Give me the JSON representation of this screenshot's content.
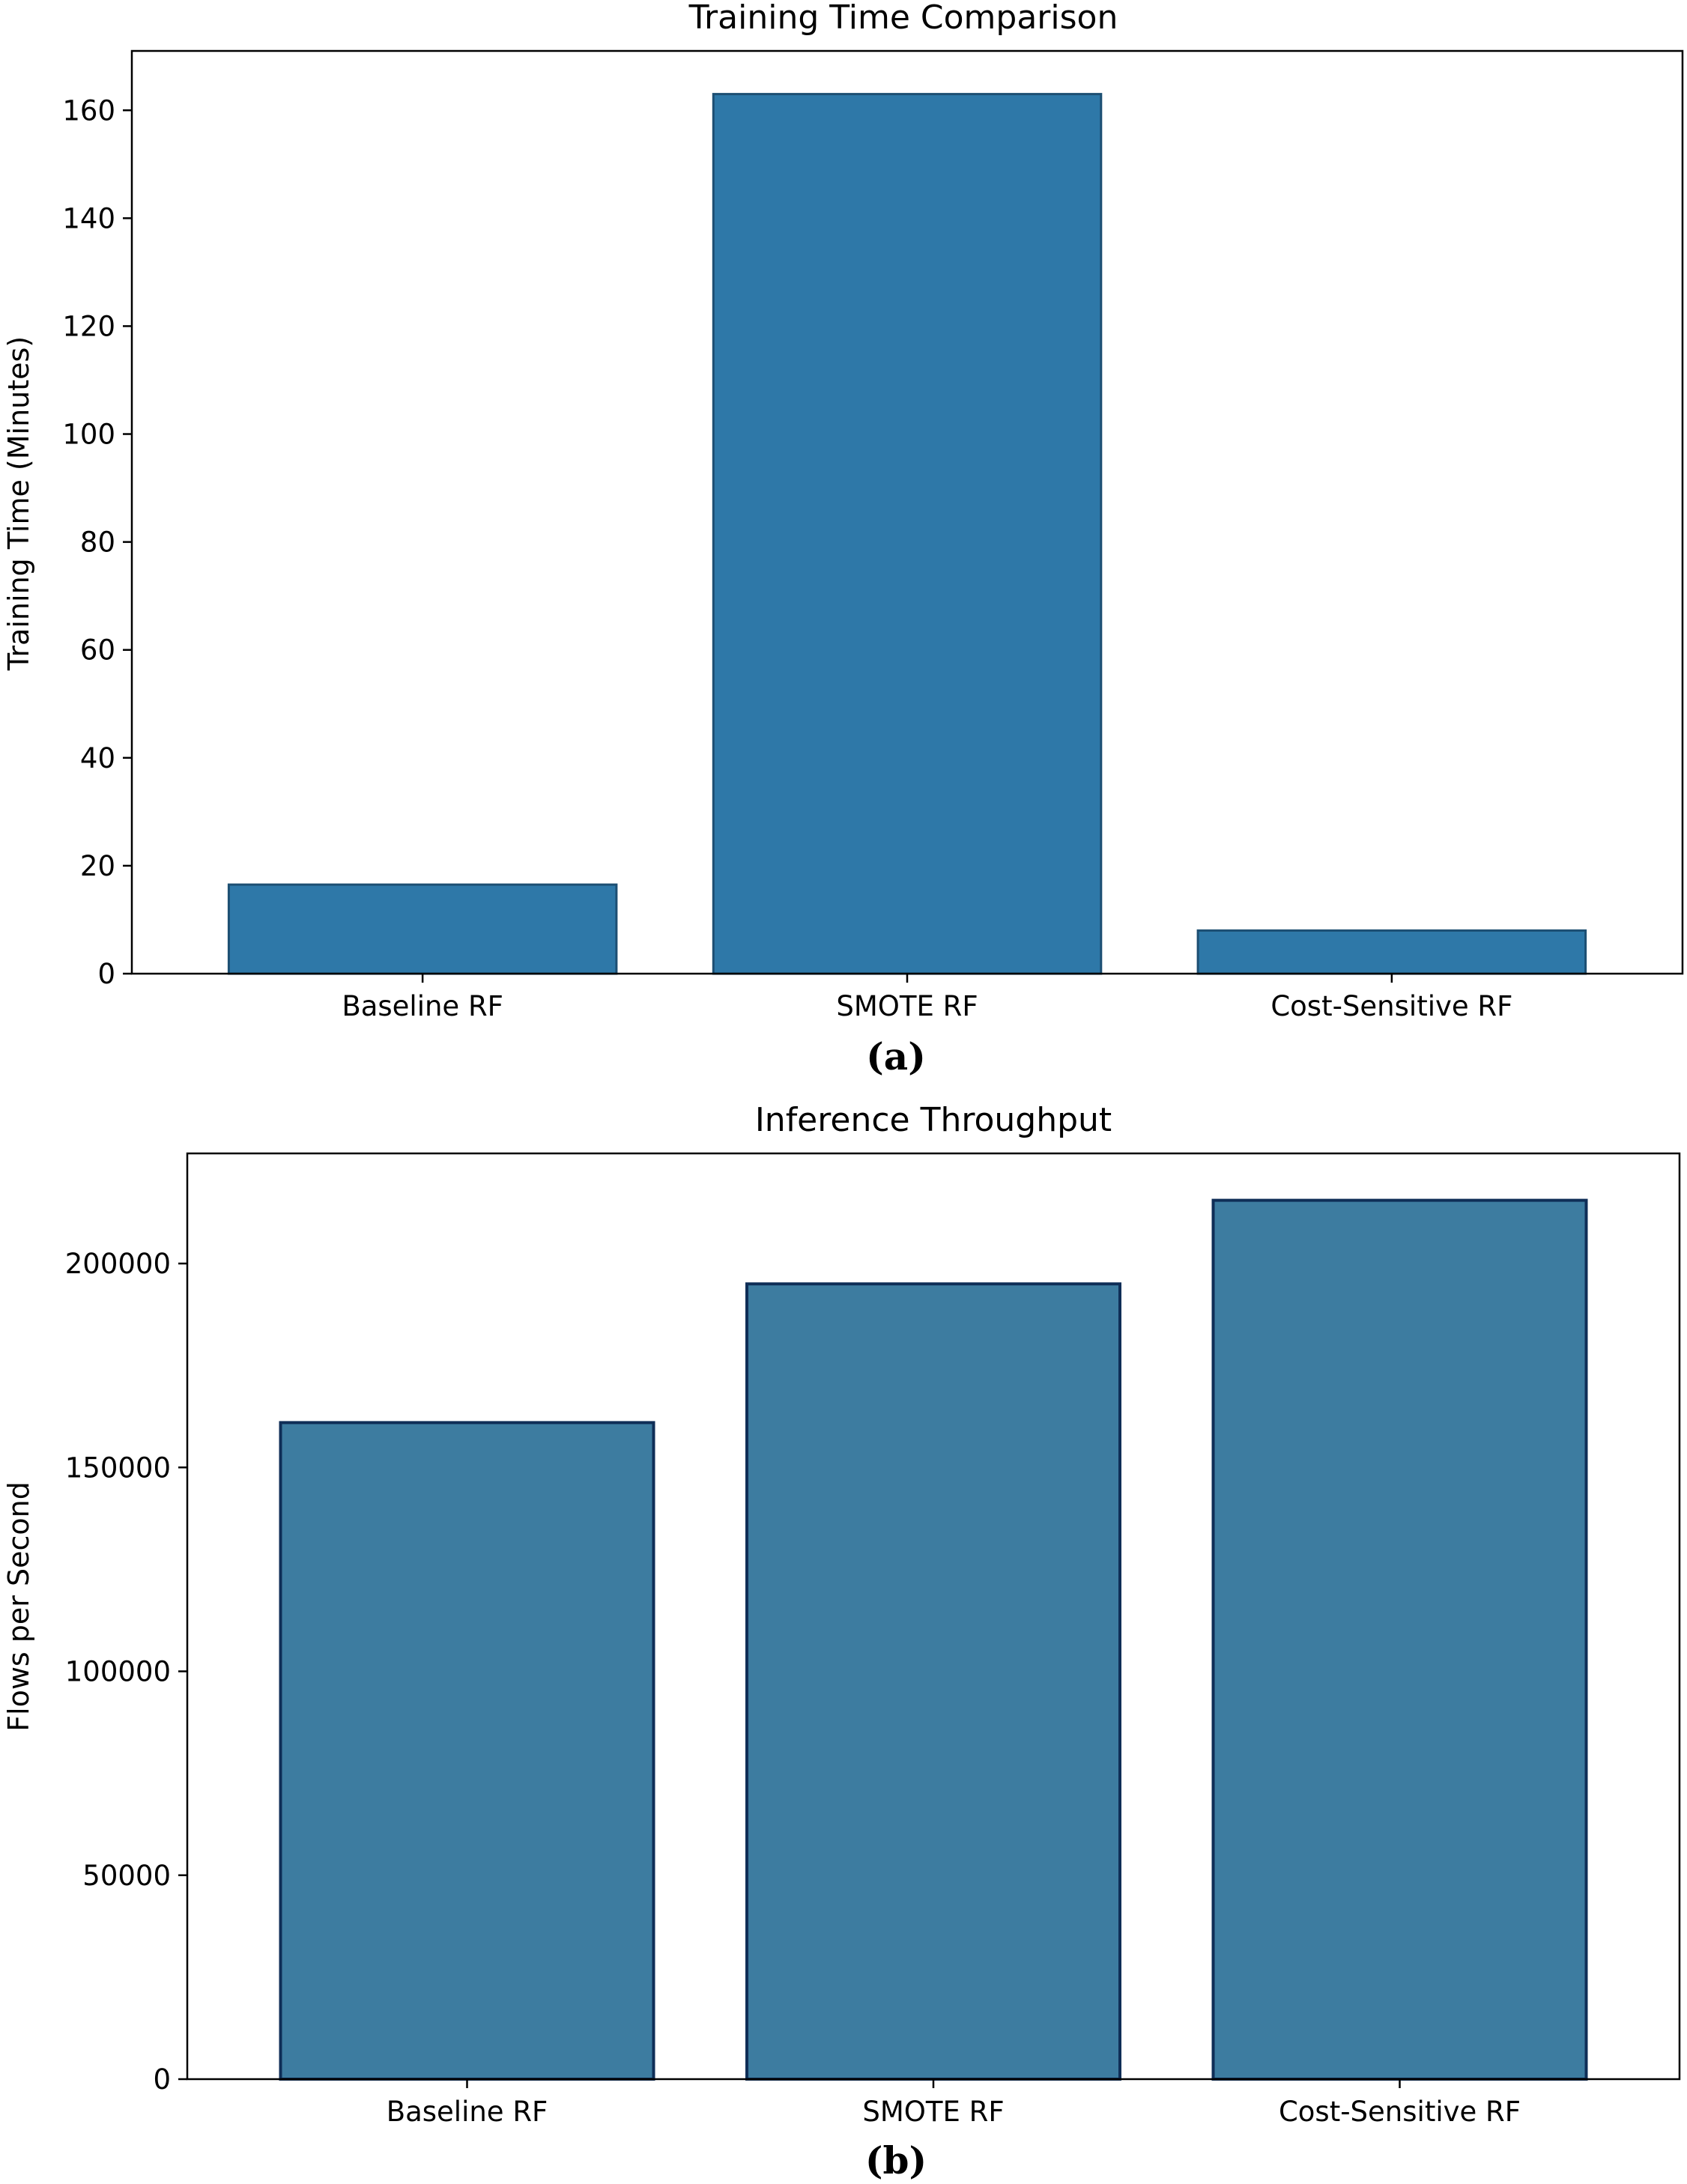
{
  "chart_data": [
    {
      "type": "bar",
      "panel_label": "(a)",
      "title": "Training Time Comparison",
      "xlabel": "",
      "ylabel": "Training Time (Minutes)",
      "categories": [
        "Baseline RF",
        "SMOTE RF",
        "Cost-Sensitive RF"
      ],
      "values": [
        16.5,
        163,
        8
      ],
      "ylim": [
        0,
        171
      ],
      "yticks": [
        0,
        20,
        40,
        60,
        80,
        100,
        120,
        140,
        160
      ],
      "grid": false,
      "bar_color": "#2e78a8",
      "edge_color": "#1d4f73"
    },
    {
      "type": "bar",
      "panel_label": "(b)",
      "title": "Inference Throughput",
      "xlabel": "",
      "ylabel": "Flows per Second",
      "categories": [
        "Baseline RF",
        "SMOTE RF",
        "Cost-Sensitive RF"
      ],
      "values": [
        161000,
        195000,
        215500
      ],
      "ylim": [
        0,
        227000
      ],
      "yticks": [
        0,
        50000,
        100000,
        150000,
        200000
      ],
      "grid": false,
      "bar_color": "#3d7ca0",
      "edge_color": "#0f2e57"
    }
  ]
}
